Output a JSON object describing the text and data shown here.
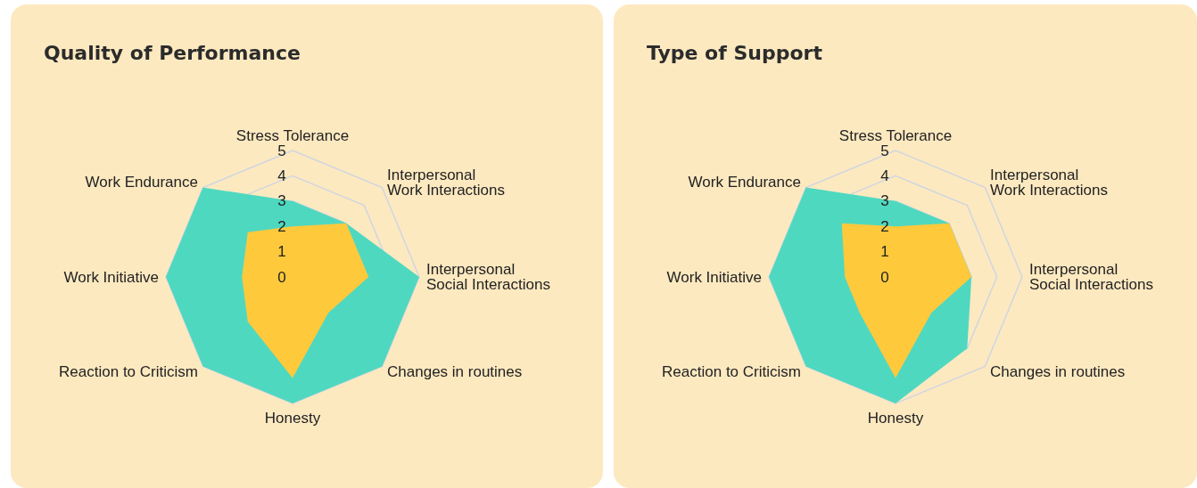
{
  "chart_data": [
    {
      "type": "radar",
      "title": "Quality of Performance",
      "categories": [
        "Stress Tolerance",
        "Interpersonal Work Interactions",
        "Interpersonal Social Interactions",
        "Changes in routines",
        "Honesty",
        "Reaction to Criticism",
        "Work Initiative",
        "Work Endurance"
      ],
      "ylim": [
        0,
        5
      ],
      "yticks": [
        0,
        1,
        2,
        3,
        4,
        5
      ],
      "grid": true,
      "series": [
        {
          "color": "#4fd8c0",
          "values": [
            3,
            3,
            5,
            5,
            5,
            5,
            5,
            5
          ]
        },
        {
          "color": "#ffc93c",
          "values": [
            2,
            3,
            3,
            2,
            4,
            2.5,
            2,
            2.5
          ]
        }
      ]
    },
    {
      "type": "radar",
      "title": "Type of Support",
      "categories": [
        "Stress Tolerance",
        "Interpersonal Work Interactions",
        "Interpersonal Social Interactions",
        "Changes in routines",
        "Honesty",
        "Reaction to Criticism",
        "Work Initiative",
        "Work Endurance"
      ],
      "ylim": [
        0,
        5
      ],
      "yticks": [
        0,
        1,
        2,
        3,
        4,
        5
      ],
      "grid": true,
      "series": [
        {
          "color": "#4fd8c0",
          "values": [
            3,
            3,
            3,
            4,
            5,
            5,
            5,
            5
          ]
        },
        {
          "color": "#ffc93c",
          "values": [
            2,
            3,
            3,
            2,
            4,
            2,
            2,
            3
          ]
        }
      ]
    }
  ]
}
